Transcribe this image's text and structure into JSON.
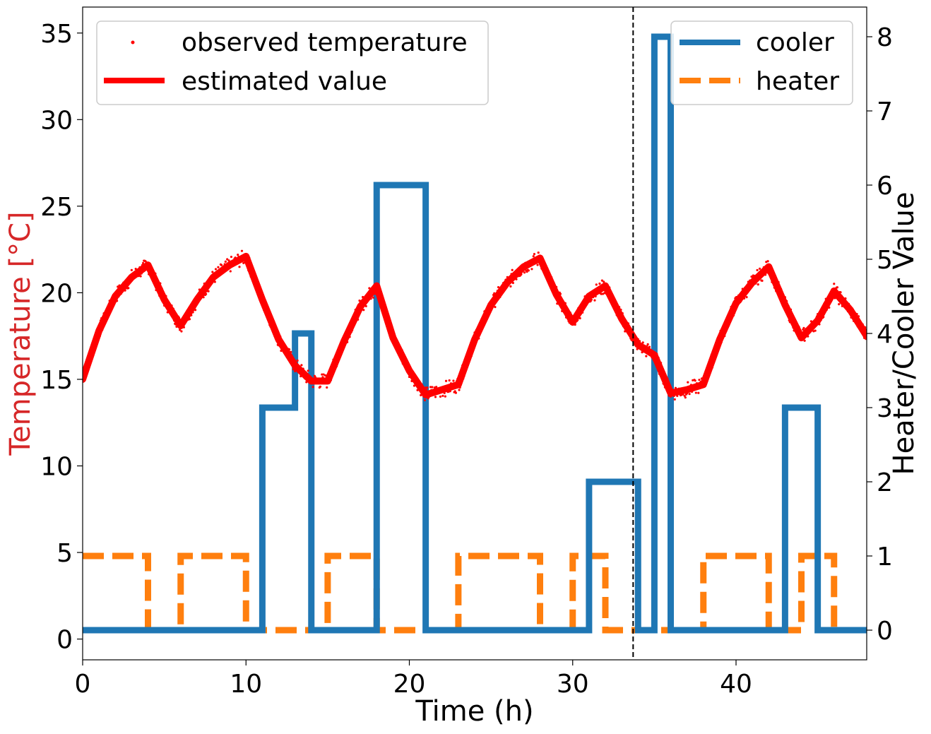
{
  "chart_data": {
    "type": "line",
    "xlabel": "Time (h)",
    "ylabel_left": "Temperature [°C]",
    "ylabel_right": "Heater/Cooler Value",
    "xlim": [
      0,
      48
    ],
    "ylim_left": [
      -1.2,
      36.5
    ],
    "ylim_right": [
      -0.4,
      8.4
    ],
    "x_ticks": [
      "0",
      "10",
      "20",
      "30",
      "40"
    ],
    "y_left_ticks": [
      "0",
      "5",
      "10",
      "15",
      "20",
      "25",
      "30",
      "35"
    ],
    "y_right_ticks": [
      "0",
      "1",
      "2",
      "3",
      "4",
      "5",
      "6",
      "7",
      "8"
    ],
    "vline_x": 33.7,
    "legend_left": {
      "position": "top-left",
      "entries": [
        "observed temperature",
        "estimated value"
      ]
    },
    "legend_right": {
      "position": "top-right",
      "entries": [
        "cooler",
        "heater"
      ]
    },
    "colors": {
      "temperature": "#ff0000",
      "cooler": "#1f77b4",
      "heater": "#ff7f0e",
      "ylabel_left": "#d62728",
      "vline": "#000000"
    },
    "series": [
      {
        "name": "estimated value",
        "axis": "left",
        "x": [
          0,
          1,
          2,
          3,
          4,
          5,
          6,
          7,
          8,
          9,
          10,
          11,
          12,
          13,
          14,
          15,
          16,
          17,
          18,
          19,
          20,
          21,
          22,
          23,
          24,
          25,
          26,
          27,
          28,
          29,
          30,
          31,
          32,
          33,
          34,
          35,
          36,
          37,
          38,
          39,
          40,
          41,
          42,
          43,
          44,
          45,
          46,
          47,
          48
        ],
        "values": [
          15.0,
          17.8,
          19.8,
          20.9,
          21.6,
          19.6,
          18.1,
          19.6,
          20.9,
          21.6,
          22.1,
          19.6,
          17.3,
          15.8,
          14.9,
          14.9,
          17.2,
          19.2,
          20.4,
          17.4,
          15.5,
          14.1,
          14.4,
          14.7,
          17.3,
          19.3,
          20.6,
          21.5,
          22.0,
          19.9,
          18.3,
          19.8,
          20.4,
          18.5,
          17.0,
          16.4,
          14.2,
          14.4,
          14.7,
          17.3,
          19.4,
          20.6,
          21.5,
          19.3,
          17.4,
          18.4,
          20.1,
          19.0,
          17.5
        ]
      },
      {
        "name": "cooler",
        "axis": "right",
        "x": [
          0,
          11,
          11,
          13,
          13,
          14,
          14,
          18,
          18,
          21,
          21,
          31,
          31,
          34,
          34,
          35,
          35,
          36,
          36,
          43,
          43,
          45,
          45,
          48
        ],
        "values": [
          0,
          0,
          3,
          3,
          4,
          4,
          0,
          0,
          6,
          6,
          0,
          0,
          2,
          2,
          0,
          0,
          8,
          8,
          0,
          0,
          3,
          3,
          0,
          0
        ]
      },
      {
        "name": "heater",
        "axis": "right",
        "x": [
          0,
          4,
          4,
          6,
          6,
          10,
          10,
          15,
          15,
          18,
          18,
          23,
          23,
          28,
          28,
          30,
          30,
          32,
          32,
          38,
          38,
          42,
          42,
          44,
          44,
          46,
          46,
          48
        ],
        "values": [
          1,
          1,
          0,
          0,
          1,
          1,
          0,
          0,
          1,
          1,
          0,
          0,
          1,
          1,
          0,
          0,
          1,
          1,
          0,
          0,
          1,
          1,
          0,
          0,
          1,
          1,
          0,
          0
        ]
      }
    ]
  }
}
